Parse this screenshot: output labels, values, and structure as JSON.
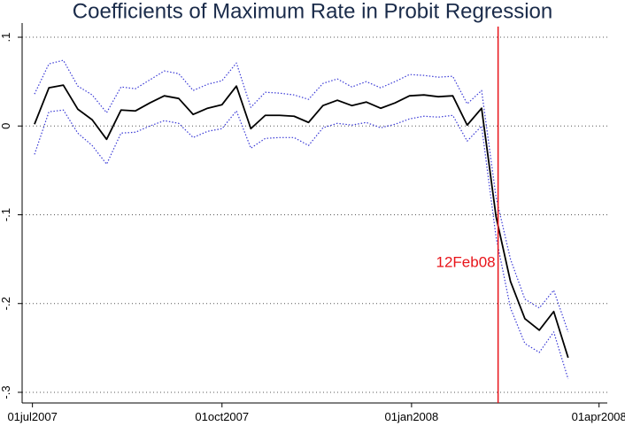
{
  "chart_data": {
    "type": "line",
    "title": "Coefficients of Maximum Rate in Probit Regression",
    "x": [
      "2007-07-02",
      "2007-07-09",
      "2007-07-16",
      "2007-07-23",
      "2007-07-30",
      "2007-08-06",
      "2007-08-13",
      "2007-08-20",
      "2007-08-27",
      "2007-09-03",
      "2007-09-10",
      "2007-09-17",
      "2007-09-24",
      "2007-10-01",
      "2007-10-08",
      "2007-10-15",
      "2007-10-22",
      "2007-10-29",
      "2007-11-05",
      "2007-11-12",
      "2007-11-19",
      "2007-11-26",
      "2007-12-03",
      "2007-12-10",
      "2007-12-17",
      "2007-12-24",
      "2007-12-31",
      "2008-01-07",
      "2008-01-14",
      "2008-01-21",
      "2008-01-28",
      "2008-02-04",
      "2008-02-11",
      "2008-02-18",
      "2008-02-25",
      "2008-03-03",
      "2008-03-10",
      "2008-03-17"
    ],
    "series": [
      {
        "color": "#000000",
        "style": "solid",
        "values": [
          0.002,
          0.043,
          0.046,
          0.019,
          0.007,
          -0.015,
          0.018,
          0.017,
          0.026,
          0.034,
          0.031,
          0.013,
          0.02,
          0.024,
          0.045,
          -0.003,
          0.012,
          0.012,
          0.011,
          0.004,
          0.023,
          0.029,
          0.023,
          0.027,
          0.02,
          0.026,
          0.034,
          0.035,
          0.033,
          0.034,
          0.001,
          0.02,
          -0.102,
          -0.175,
          -0.217,
          -0.23,
          -0.209,
          -0.261
        ]
      },
      {
        "color": "#3a3ad6",
        "style": "dotted",
        "values": [
          0.036,
          0.07,
          0.074,
          0.045,
          0.035,
          0.015,
          0.044,
          0.042,
          0.052,
          0.062,
          0.059,
          0.04,
          0.047,
          0.051,
          0.071,
          0.021,
          0.038,
          0.037,
          0.035,
          0.03,
          0.048,
          0.053,
          0.044,
          0.05,
          0.043,
          0.05,
          0.058,
          0.057,
          0.055,
          0.056,
          0.025,
          0.04,
          -0.08,
          -0.15,
          -0.195,
          -0.205,
          -0.185,
          -0.232
        ]
      },
      {
        "color": "#3a3ad6",
        "style": "dotted",
        "values": [
          -0.032,
          0.016,
          0.018,
          -0.008,
          -0.022,
          -0.043,
          -0.008,
          -0.007,
          0.0,
          0.006,
          0.003,
          -0.013,
          -0.006,
          -0.003,
          0.017,
          -0.025,
          -0.014,
          -0.013,
          -0.013,
          -0.022,
          -0.002,
          0.003,
          0.001,
          0.004,
          -0.002,
          0.002,
          0.008,
          0.011,
          0.01,
          0.012,
          -0.017,
          0.0,
          -0.125,
          -0.205,
          -0.245,
          -0.255,
          -0.232,
          -0.285
        ]
      }
    ],
    "xlim": [
      "2007-06-26",
      "2008-04-05"
    ],
    "xticks": [
      {
        "value": "2007-07-01",
        "label": "01jul2007"
      },
      {
        "value": "2007-10-01",
        "label": "01oct2007"
      },
      {
        "value": "2008-01-01",
        "label": "01jan2008"
      },
      {
        "value": "2008-04-01",
        "label": "01apr2008"
      }
    ],
    "ylim": [
      -0.312,
      0.112
    ],
    "yticks": [
      {
        "value": 0.1,
        "label": ".1"
      },
      0,
      {
        "value": -0.1,
        "label": "-.1"
      },
      {
        "value": -0.2,
        "label": "-.2"
      },
      {
        "value": -0.3,
        "label": "-.3"
      }
    ],
    "grid": true,
    "vline": {
      "x": "2008-02-12",
      "color": "#e8141a",
      "label": "12Feb08"
    }
  }
}
